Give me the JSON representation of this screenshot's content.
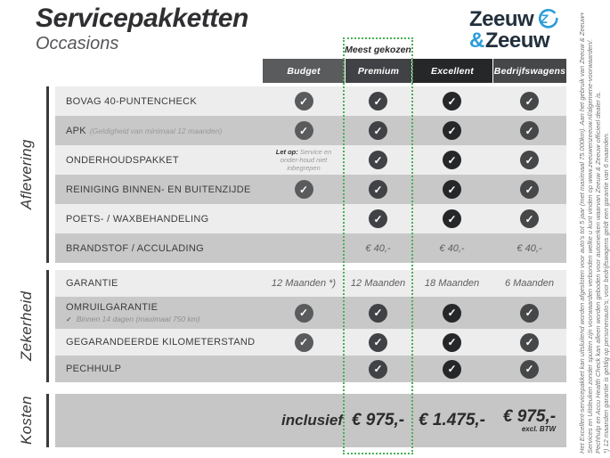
{
  "page": {
    "title": "Servicepakketten",
    "subtitle": "Occasions"
  },
  "logo": {
    "word1": "Zeeuw",
    "amp": "&",
    "word2": "Zeeuw",
    "blue": "#2b9cd8",
    "navy": "#22303d"
  },
  "highlight_badge": "Meest gekozen",
  "highlight_color": "#47b153",
  "columns": [
    {
      "id": "budget",
      "label": "Budget",
      "color": "#5a5b5d"
    },
    {
      "id": "premium",
      "label": "Premium",
      "color": "#414245",
      "highlighted": true
    },
    {
      "id": "excellent",
      "label": "Excellent",
      "color": "#262729"
    },
    {
      "id": "bedrijfswagens",
      "label": "Bedrijfswagens",
      "color": "#464749"
    }
  ],
  "sections": [
    {
      "id": "aflevering",
      "label": "Aflevering",
      "rows": [
        {
          "label": "BOVAG 40-PUNTENCHECK",
          "cells": [
            {
              "t": "check"
            },
            {
              "t": "check"
            },
            {
              "t": "check"
            },
            {
              "t": "check"
            }
          ]
        },
        {
          "label": "APK",
          "note_inline": "(Geldigheid van minimaal 12 maanden)",
          "cells": [
            {
              "t": "check"
            },
            {
              "t": "check"
            },
            {
              "t": "check"
            },
            {
              "t": "check"
            }
          ]
        },
        {
          "label": "ONDERHOUDSPAKKET",
          "cells": [
            {
              "t": "note",
              "b": "Let op:",
              "v": "Service en onder-houd niet inbegrepen"
            },
            {
              "t": "check"
            },
            {
              "t": "check"
            },
            {
              "t": "check"
            }
          ]
        },
        {
          "label": "REINIGING BINNEN- EN BUITENZIJDE",
          "cells": [
            {
              "t": "check"
            },
            {
              "t": "check"
            },
            {
              "t": "check"
            },
            {
              "t": "check"
            }
          ]
        },
        {
          "label": "POETS- / WAXBEHANDELING",
          "cells": [
            {
              "t": "none"
            },
            {
              "t": "check"
            },
            {
              "t": "check"
            },
            {
              "t": "check"
            }
          ]
        },
        {
          "label": "BRANDSTOF / ACCULADING",
          "cells": [
            {
              "t": "none"
            },
            {
              "t": "text",
              "v": "€ 40,-"
            },
            {
              "t": "text",
              "v": "€ 40,-"
            },
            {
              "t": "text",
              "v": "€ 40,-"
            }
          ]
        }
      ]
    },
    {
      "id": "zekerheid",
      "label": "Zekerheid",
      "rows": [
        {
          "label": "GARANTIE",
          "cells": [
            {
              "t": "text",
              "v": "12 Maanden *)"
            },
            {
              "t": "text",
              "v": "12 Maanden"
            },
            {
              "t": "text",
              "v": "18 Maanden"
            },
            {
              "t": "text",
              "v": "6 Maanden"
            }
          ]
        },
        {
          "label": "OMRUILGARANTIE",
          "sub_check": "Binnen 14 dagen (maximaal 750 km)",
          "cells": [
            {
              "t": "check"
            },
            {
              "t": "check"
            },
            {
              "t": "check"
            },
            {
              "t": "check"
            }
          ]
        },
        {
          "label": "GEGARANDEERDE KILOMETERSTAND",
          "cells": [
            {
              "t": "check"
            },
            {
              "t": "check"
            },
            {
              "t": "check"
            },
            {
              "t": "check"
            }
          ]
        },
        {
          "label": "PECHHULP",
          "cells": [
            {
              "t": "none"
            },
            {
              "t": "check"
            },
            {
              "t": "check"
            },
            {
              "t": "check"
            }
          ]
        }
      ]
    }
  ],
  "kosten": {
    "label": "Kosten",
    "cells": [
      {
        "t": "label",
        "v": "inclusief"
      },
      {
        "t": "price",
        "v": "€ 975,-"
      },
      {
        "t": "price",
        "v": "€ 1.475,-"
      },
      {
        "t": "price",
        "v": "€ 975,-",
        "note": "excl. BTW"
      }
    ]
  },
  "footnotes": [
    "Het Excellent-servicepakket kan uitsluitend worden afgesloten voor auto's tot 5 jaar (met maximaal 75.000km). Aan het gebruik van Zeeuw & Zeeuw+",
    "Services en Uitdeuken zonder spuiten zijn voorwaarden verbonden welke u kunt vinden op www.zeeuwenzeeuw.nl/algemene-voorwaarden/.",
    "Pechhulp en Accu Health Check kan alleen worden geboden voor automerken waarvan Zeeuw & Zeeuw officieel dealer is.",
    "*) 12 maanden garantie is geldig op personenauto's; voor bedrijfswagens geldt een garantie van 6 maanden."
  ]
}
